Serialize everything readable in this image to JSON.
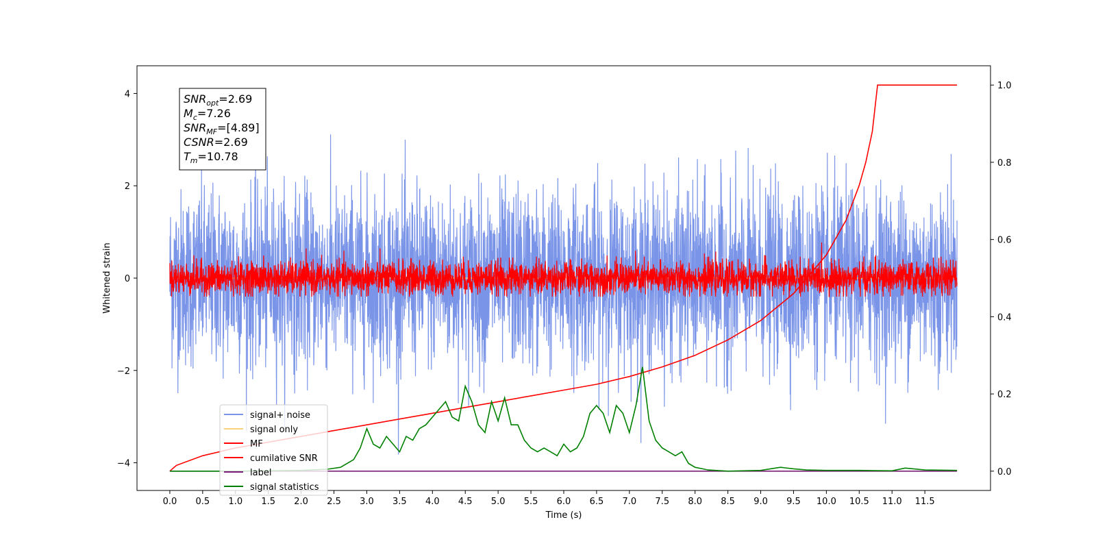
{
  "chart_data": {
    "type": "line",
    "xlabel": "Time (s)",
    "ylabel": "Whitened strain",
    "xlim": [
      -0.5,
      12.5
    ],
    "ylim": [
      -4.6,
      4.6
    ],
    "y2lim": [
      -0.05,
      1.05
    ],
    "xticks": [
      "0.0",
      "0.5",
      "1.0",
      "1.5",
      "2.0",
      "2.5",
      "3.0",
      "3.5",
      "4.0",
      "4.5",
      "5.0",
      "5.5",
      "6.0",
      "6.5",
      "7.0",
      "7.5",
      "8.0",
      "8.5",
      "9.0",
      "9.5",
      "10.0",
      "10.5",
      "11.0",
      "11.5"
    ],
    "yticks": [
      "−4",
      "−2",
      "0",
      "2",
      "4"
    ],
    "y2ticks": [
      "0.0",
      "0.2",
      "0.4",
      "0.6",
      "0.8",
      "1.0"
    ],
    "grid": false,
    "legend_placement": "lower-left",
    "info_box": {
      "lines": [
        {
          "main": "SNR",
          "sub": "opt",
          "value": "=2.69"
        },
        {
          "main": "M",
          "sub": "c",
          "value": "=7.26"
        },
        {
          "main": "SNR",
          "sub": "MF",
          "value": "=[4.89]"
        },
        {
          "main": "CSNR",
          "sub": "",
          "value": "=2.69"
        },
        {
          "main": "T",
          "sub": "m",
          "value": "=10.78"
        }
      ]
    },
    "series": [
      {
        "name": "signal+ noise",
        "color": "#7a94e8",
        "axis": "left",
        "kind": "noise",
        "x_range": [
          0.0,
          11.99
        ],
        "center": 0.0,
        "std": 0.95,
        "min": -4.1,
        "max": 4.2
      },
      {
        "name": "signal only",
        "color": "#f7d27a",
        "axis": "left",
        "kind": "flat",
        "x_range": [
          0.0,
          11.99
        ],
        "value": 0.0
      },
      {
        "name": "MF",
        "color": "#ff0000",
        "axis": "left",
        "kind": "noise",
        "x_range": [
          0.0,
          11.99
        ],
        "center": 0.0,
        "std": 0.18,
        "min": -0.4,
        "max": 1.0
      },
      {
        "name": "cumilative SNR",
        "color": "#ff0000",
        "axis": "right",
        "x": [
          0.0,
          0.1,
          0.5,
          1.0,
          1.5,
          2.0,
          2.5,
          3.0,
          3.5,
          4.0,
          4.5,
          5.0,
          5.5,
          6.0,
          6.5,
          7.0,
          7.5,
          8.0,
          8.5,
          9.0,
          9.5,
          10.0,
          10.3,
          10.5,
          10.6,
          10.7,
          10.78,
          11.99
        ],
        "y": [
          0.0,
          0.015,
          0.04,
          0.06,
          0.075,
          0.09,
          0.105,
          0.12,
          0.135,
          0.15,
          0.165,
          0.18,
          0.195,
          0.21,
          0.225,
          0.245,
          0.27,
          0.3,
          0.34,
          0.39,
          0.46,
          0.56,
          0.65,
          0.74,
          0.8,
          0.88,
          1.0,
          1.0
        ]
      },
      {
        "name": "label",
        "color": "#7a1a7a",
        "axis": "right",
        "x": [
          0.0,
          11.99
        ],
        "y": [
          0.0,
          0.0
        ]
      },
      {
        "name": "signal statistics",
        "color": "#008000",
        "axis": "right",
        "x": [
          0.0,
          1.0,
          2.0,
          2.4,
          2.6,
          2.8,
          2.9,
          3.0,
          3.1,
          3.2,
          3.3,
          3.4,
          3.5,
          3.6,
          3.7,
          3.8,
          3.9,
          4.0,
          4.1,
          4.2,
          4.3,
          4.4,
          4.5,
          4.6,
          4.7,
          4.8,
          4.9,
          5.0,
          5.1,
          5.2,
          5.3,
          5.4,
          5.5,
          5.6,
          5.7,
          5.8,
          5.9,
          6.0,
          6.1,
          6.2,
          6.3,
          6.4,
          6.5,
          6.6,
          6.7,
          6.8,
          6.9,
          7.0,
          7.1,
          7.2,
          7.3,
          7.4,
          7.5,
          7.6,
          7.7,
          7.8,
          7.9,
          8.0,
          8.2,
          8.5,
          9.0,
          9.3,
          9.5,
          9.7,
          10.0,
          10.5,
          11.0,
          11.2,
          11.5,
          11.99
        ],
        "y": [
          0.0,
          0.0,
          0.002,
          0.005,
          0.01,
          0.03,
          0.06,
          0.11,
          0.07,
          0.06,
          0.09,
          0.07,
          0.05,
          0.09,
          0.08,
          0.11,
          0.12,
          0.14,
          0.16,
          0.18,
          0.14,
          0.13,
          0.22,
          0.18,
          0.12,
          0.1,
          0.18,
          0.13,
          0.19,
          0.12,
          0.12,
          0.08,
          0.06,
          0.05,
          0.06,
          0.05,
          0.04,
          0.07,
          0.05,
          0.06,
          0.09,
          0.15,
          0.17,
          0.15,
          0.1,
          0.17,
          0.15,
          0.1,
          0.17,
          0.27,
          0.13,
          0.08,
          0.06,
          0.05,
          0.04,
          0.05,
          0.02,
          0.01,
          0.003,
          0.0,
          0.002,
          0.01,
          0.006,
          0.003,
          0.002,
          0.002,
          0.001,
          0.008,
          0.003,
          0.002
        ]
      }
    ]
  }
}
